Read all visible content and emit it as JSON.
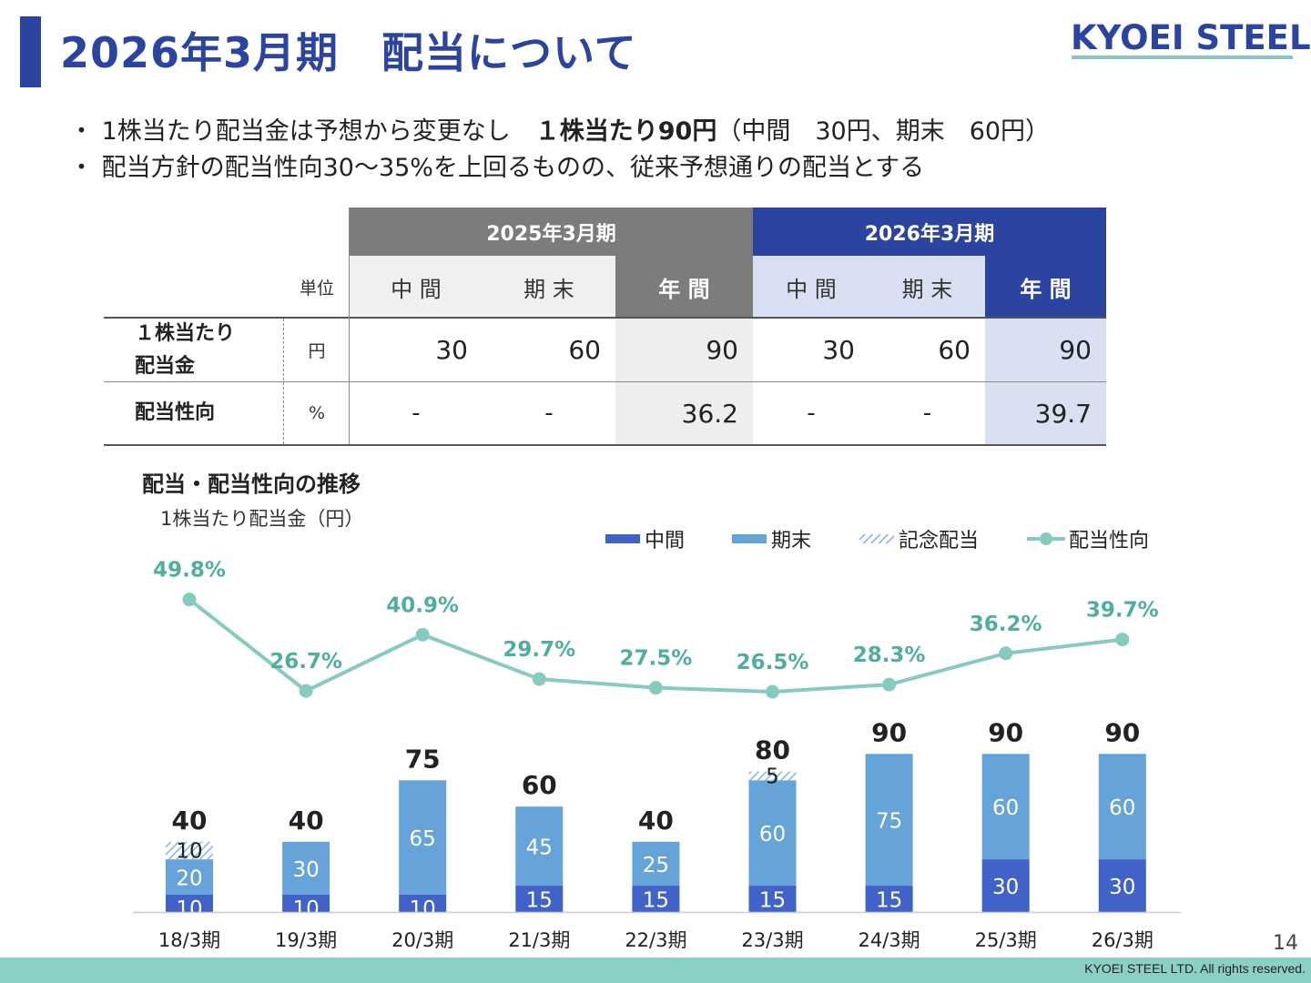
{
  "header": {
    "title": "2026年3月期　配当について",
    "logo": "KYOEI STEEL"
  },
  "bullets": {
    "b1_prefix": "・ 1株当たり配当金は予想から変更なし　",
    "b1_bold": "１株当たり90円",
    "b1_suffix": "（中間　30円、期末　60円）",
    "b2": "・ 配当方針の配当性向30～35%を上回るものの、従来予想通りの配当とする"
  },
  "table": {
    "fy2025": "2025年3月期",
    "fy2026": "2026年3月期",
    "unit_label": "単位",
    "col_interim": "中 間",
    "col_yearend": "期 末",
    "col_annual": "年 間",
    "row1_label_l1": "１株当たり",
    "row1_label_l2": "配当金",
    "row1_unit": "円",
    "row1": [
      "30",
      "60",
      "90",
      "30",
      "60",
      "90"
    ],
    "row2_label": "配当性向",
    "row2_unit": "%",
    "row2": [
      "-",
      "-",
      "36.2",
      "-",
      "-",
      "39.7"
    ]
  },
  "chart_title": "配当・配当性向の推移",
  "chart_ylabel": "1株当たり配当金（円）",
  "colors": {
    "interim": "#4162c8",
    "yearend": "#66a3d9",
    "commemorative": "#aac8ec",
    "payout": "#86cbbf",
    "payout_label": "#4fae9e"
  },
  "chart_data": {
    "type": "bar",
    "categories": [
      "18/3期",
      "19/3期",
      "20/3期",
      "21/3期",
      "22/3期",
      "23/3期",
      "24/3期",
      "25/3期",
      "26/3期"
    ],
    "series": [
      {
        "name": "中間",
        "values": [
          10,
          10,
          10,
          15,
          15,
          15,
          15,
          30,
          30
        ]
      },
      {
        "name": "期末",
        "values": [
          20,
          30,
          65,
          45,
          25,
          60,
          75,
          60,
          60
        ]
      },
      {
        "name": "記念配当",
        "values": [
          10,
          0,
          0,
          0,
          0,
          5,
          0,
          0,
          0
        ]
      },
      {
        "name": "配当性向",
        "type": "line",
        "values": [
          49.8,
          26.7,
          40.9,
          29.7,
          27.5,
          26.5,
          28.3,
          36.2,
          39.7
        ]
      }
    ],
    "totals": [
      40,
      40,
      75,
      60,
      40,
      80,
      90,
      90,
      90
    ],
    "payout_labels": [
      "49.8%",
      "26.7%",
      "40.9%",
      "29.7%",
      "27.5%",
      "26.5%",
      "28.3%",
      "36.2%",
      "39.7%"
    ],
    "legend": [
      "中間",
      "期末",
      "記念配当",
      "配当性向"
    ],
    "legend_position": "top-right",
    "grid": false
  },
  "footer": {
    "page": "14",
    "copyright": "KYOEI STEEL LTD.  All rights reserved."
  }
}
